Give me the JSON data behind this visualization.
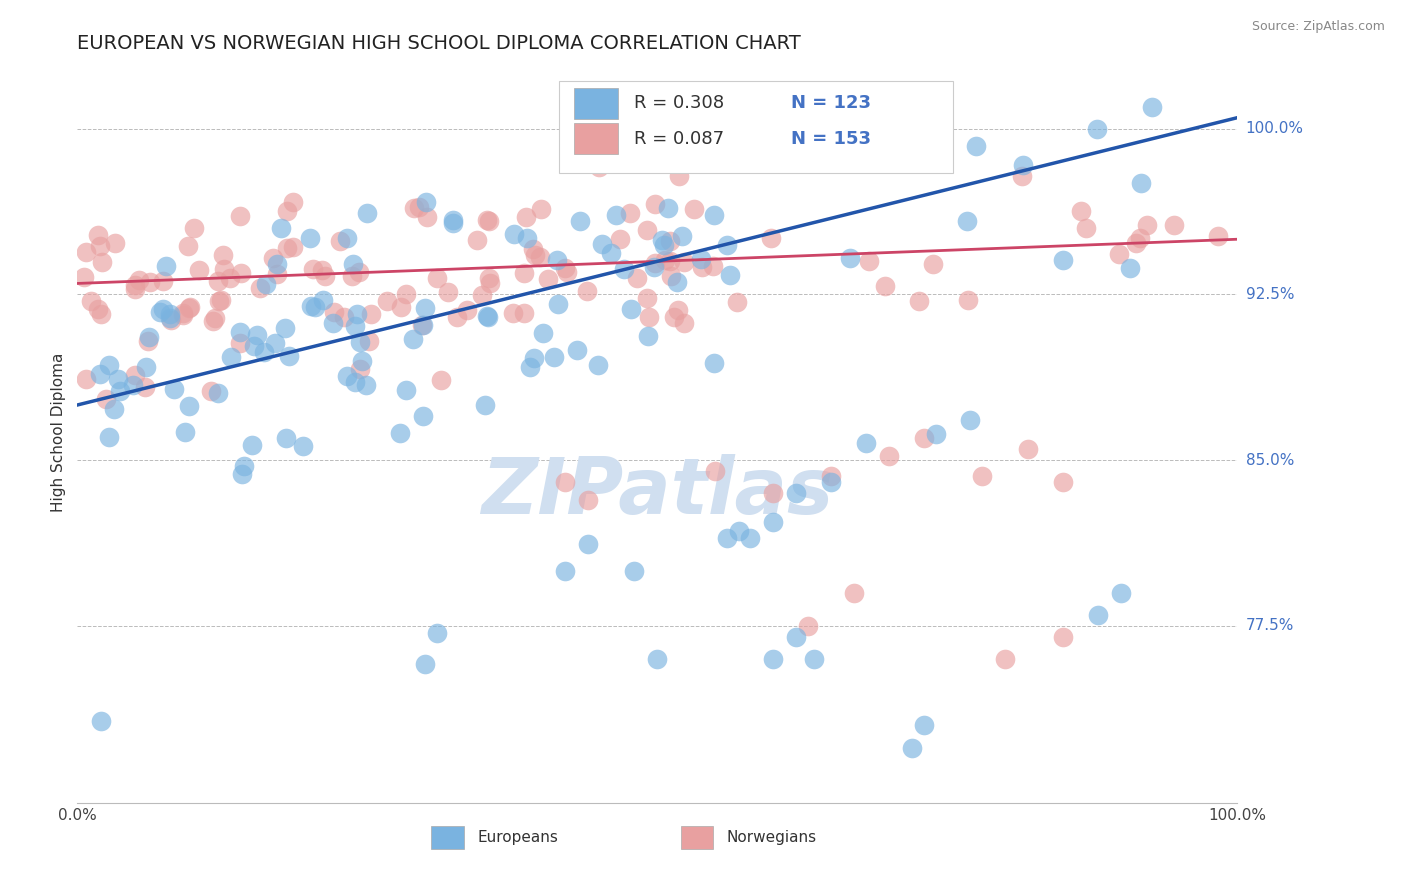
{
  "title": "EUROPEAN VS NORWEGIAN HIGH SCHOOL DIPLOMA CORRELATION CHART",
  "source": "Source: ZipAtlas.com",
  "ylabel": "High School Diploma",
  "blue_color": "#7ab3e0",
  "pink_color": "#e8a0a0",
  "blue_line_color": "#2255aa",
  "pink_line_color": "#cc4466",
  "legend_R_blue": "R = 0.308",
  "legend_N_blue": "N = 123",
  "legend_R_pink": "R = 0.087",
  "legend_N_pink": "N = 153",
  "label_europeans": "Europeans",
  "label_norwegians": "Norwegians",
  "right_tick_color": "#4472c4",
  "watermark_color": "#d0dff0",
  "right_yticks": [
    0.775,
    0.85,
    0.925,
    1.0
  ],
  "right_ytick_labels": [
    "77.5%",
    "85.0%",
    "92.5%",
    "100.0%"
  ],
  "xlim": [
    0.0,
    1.0
  ],
  "ylim": [
    0.695,
    1.03
  ],
  "blue_line_endpoints": [
    [
      0.0,
      0.875
    ],
    [
      1.0,
      1.005
    ]
  ],
  "pink_line_endpoints": [
    [
      0.0,
      0.93
    ],
    [
      1.0,
      0.95
    ]
  ]
}
